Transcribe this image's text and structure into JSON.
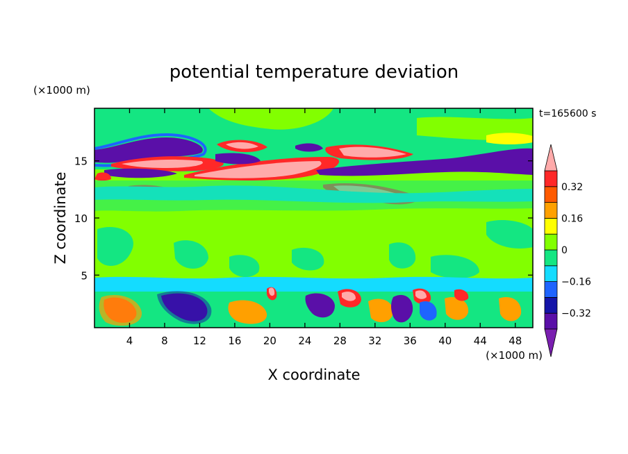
{
  "chart_data": {
    "type": "contour",
    "title": "potential temperature deviation",
    "xlabel": "X coordinate",
    "ylabel": "Z coordinate",
    "x_unit": "(×1000 m)",
    "y_unit": "(×1000 m)",
    "time_label": "t=165600 s",
    "xlim": [
      0,
      50
    ],
    "ylim": [
      0.4,
      19.6
    ],
    "x_ticks": [
      4,
      8,
      12,
      16,
      20,
      24,
      28,
      32,
      36,
      40,
      44,
      48
    ],
    "y_ticks": [
      5,
      10,
      15
    ],
    "colorbar": {
      "levels": [
        -0.4,
        -0.32,
        -0.24,
        -0.16,
        -0.08,
        0,
        0.08,
        0.16,
        0.24,
        0.32,
        0.4
      ],
      "labels": [
        "0.32",
        "0.16",
        "0",
        "−0.16",
        "−0.32"
      ],
      "label_values": [
        0.32,
        0.16,
        0,
        -0.16,
        -0.32
      ],
      "colors": [
        "#7a1fb0",
        "#5a0fa8",
        "#1414a8",
        "#1e64ff",
        "#14dcff",
        "#14e682",
        "#82ff00",
        "#ffff00",
        "#ffa000",
        "#ff5a00",
        "#ff2828",
        "#ffaaaa"
      ],
      "extend": "both"
    }
  }
}
